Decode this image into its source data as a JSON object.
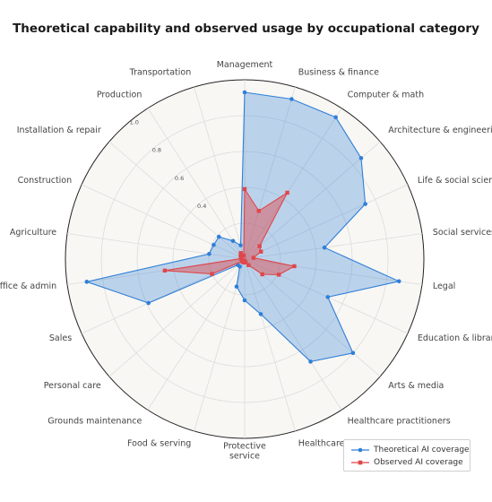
{
  "chart_data": {
    "type": "radar",
    "title": "Theoretical capability and observed usage by occupational category",
    "categories": [
      "Management",
      "Business & finance",
      "Computer & math",
      "Architecture & engineering",
      "Life & social sciences",
      "Social services",
      "Legal",
      "Education & library",
      "Arts & media",
      "Healthcare practitioners",
      "Healthcare support",
      "Protective\nservice",
      "Food & serving",
      "Grounds maintenance",
      "Personal care",
      "Sales",
      "Office & admin",
      "Agriculture",
      "Construction",
      "Installation & repair",
      "Production",
      "Transportation"
    ],
    "radial_ticks": [
      0.4,
      0.6,
      0.8,
      1.0
    ],
    "rlim": [
      0,
      1.0
    ],
    "grid": true,
    "legend_position": "bottom-right",
    "series": [
      {
        "name": "Theoretical AI coverage",
        "color": "#2f7fd8",
        "marker": "circle",
        "values": [
          0.93,
          0.93,
          0.94,
          0.86,
          0.74,
          0.45,
          0.87,
          0.51,
          0.8,
          0.68,
          0.32,
          0.23,
          0.16,
          0.05,
          0.05,
          0.59,
          0.89,
          0.2,
          0.19,
          0.19,
          0.12,
          0.08
        ]
      },
      {
        "name": "Observed AI coverage",
        "color": "#e0464a",
        "marker": "square",
        "values": [
          0.39,
          0.28,
          0.44,
          0.11,
          0.1,
          0.05,
          0.28,
          0.21,
          0.13,
          0.04,
          0.02,
          0.01,
          0.02,
          0.01,
          0.02,
          0.2,
          0.45,
          0.02,
          0.02,
          0.03,
          0.04,
          0.02
        ]
      }
    ]
  },
  "legend": {
    "items": [
      {
        "label": "Theoretical AI coverage"
      },
      {
        "label": "Observed AI coverage"
      }
    ]
  }
}
